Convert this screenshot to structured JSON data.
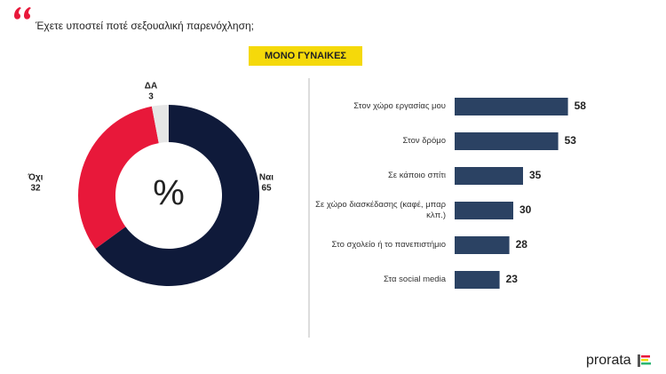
{
  "title": "Έχετε υποστεί ποτέ σεξουαλική παρενόχληση;",
  "badge": "ΜΟΝΟ ΓΥΝΑΙΚΕΣ",
  "logo": "prorata",
  "chart_data": [
    {
      "type": "pie",
      "center_label": "%",
      "categories": [
        "Ναι",
        "Όχι",
        "ΔΑ"
      ],
      "values": [
        65,
        32,
        3
      ],
      "colors": [
        "#0f1a3a",
        "#e8183a",
        "#e6e6e6"
      ]
    },
    {
      "type": "bar",
      "categories": [
        "Στον χώρο εργασίας μου",
        "Στον δρόμο",
        "Σε κάποιο σπίτι",
        "Σε χώρο διασκέδασης (καφέ, μπαρ κλπ.)",
        "Στο σχολείο ή το πανεπιστήμιο",
        "Στα social media"
      ],
      "values": [
        58,
        53,
        35,
        30,
        28,
        23
      ],
      "color": "#2b4263"
    }
  ]
}
